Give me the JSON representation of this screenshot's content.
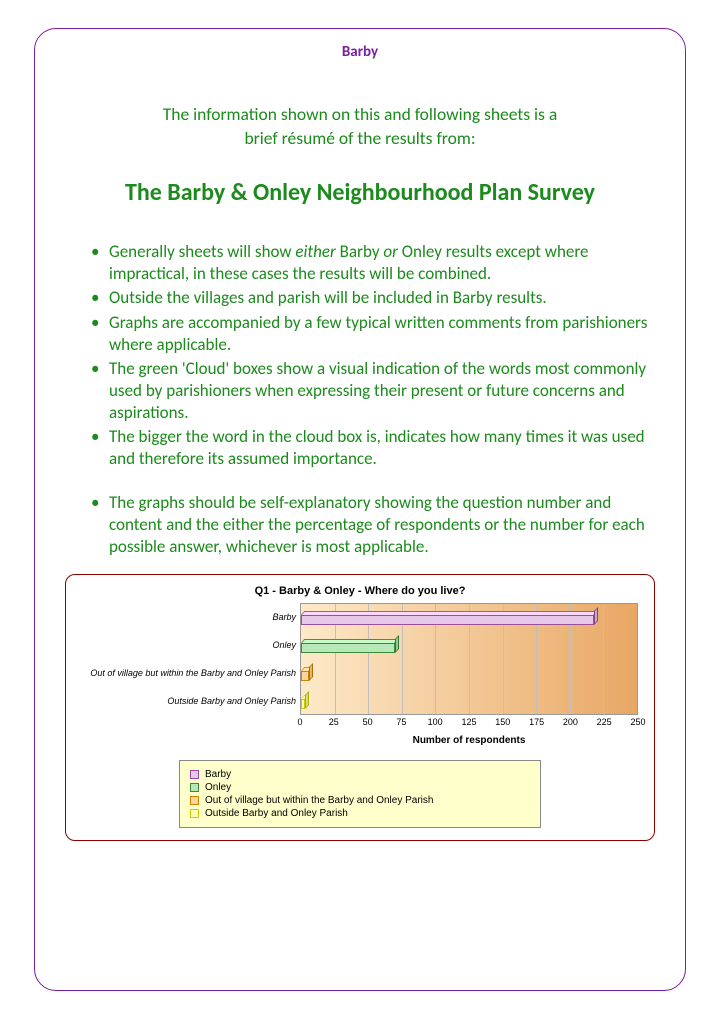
{
  "header": "Barby",
  "intro_line1": "The information shown on this and following sheets is a",
  "intro_line2": "brief résumé of the results from:",
  "title": "The Barby & Onley Neighbourhood Plan Survey",
  "bullets": [
    {
      "pre": "Generally sheets will show ",
      "em1": "either",
      "mid": " Barby ",
      "em2": "or",
      "post": " Onley results except where impractical, in these cases the results will be combined."
    },
    {
      "text": "Outside the villages and parish will be included in Barby results."
    },
    {
      "text": "Graphs are accompanied by a few typical written comments from parishioners where applicable."
    },
    {
      "text": "The green 'Cloud' boxes show a visual indication of the words most commonly used by parishioners when expressing their present or future concerns and aspirations."
    },
    {
      "text": "The bigger the word in the cloud box is, indicates how many times it was used and therefore its assumed importance."
    },
    {
      "text": "The graphs should be self-explanatory showing the question number and content and the either the percentage of respondents or the number for each possible answer, whichever is most applicable.",
      "gap": true
    }
  ],
  "chart": {
    "type": "bar-horizontal-3d",
    "title": "Q1 - Barby & Onley - Where do you live?",
    "xlabel": "Number of respondents",
    "xlim": [
      0,
      250
    ],
    "xtick_step": 25,
    "plot_bg_gradient": [
      "#fde9c9",
      "#e8a764"
    ],
    "grid_color": "#bfbfbf",
    "border_color": "#8b0000",
    "legend_bg": "#ffffcc",
    "categories": [
      {
        "label": "Barby",
        "value": 218,
        "fill": "#e8c8e8",
        "edge": "#9b4f9b"
      },
      {
        "label": "Onley",
        "value": 70,
        "fill": "#b8e8b8",
        "edge": "#3a8a3a"
      },
      {
        "label": "Out of village but within the Barby and Onley Parish",
        "value": 6,
        "fill": "#ffd699",
        "edge": "#cc8400"
      },
      {
        "label": "Outside Barby and Onley Parish",
        "value": 3,
        "fill": "#ffffb3",
        "edge": "#cccc00"
      }
    ]
  },
  "colors": {
    "frame_border": "#7b1fa2",
    "header_text": "#7b1fa2",
    "body_text": "#1c8a1c",
    "title_text": "#1c8a1c"
  }
}
